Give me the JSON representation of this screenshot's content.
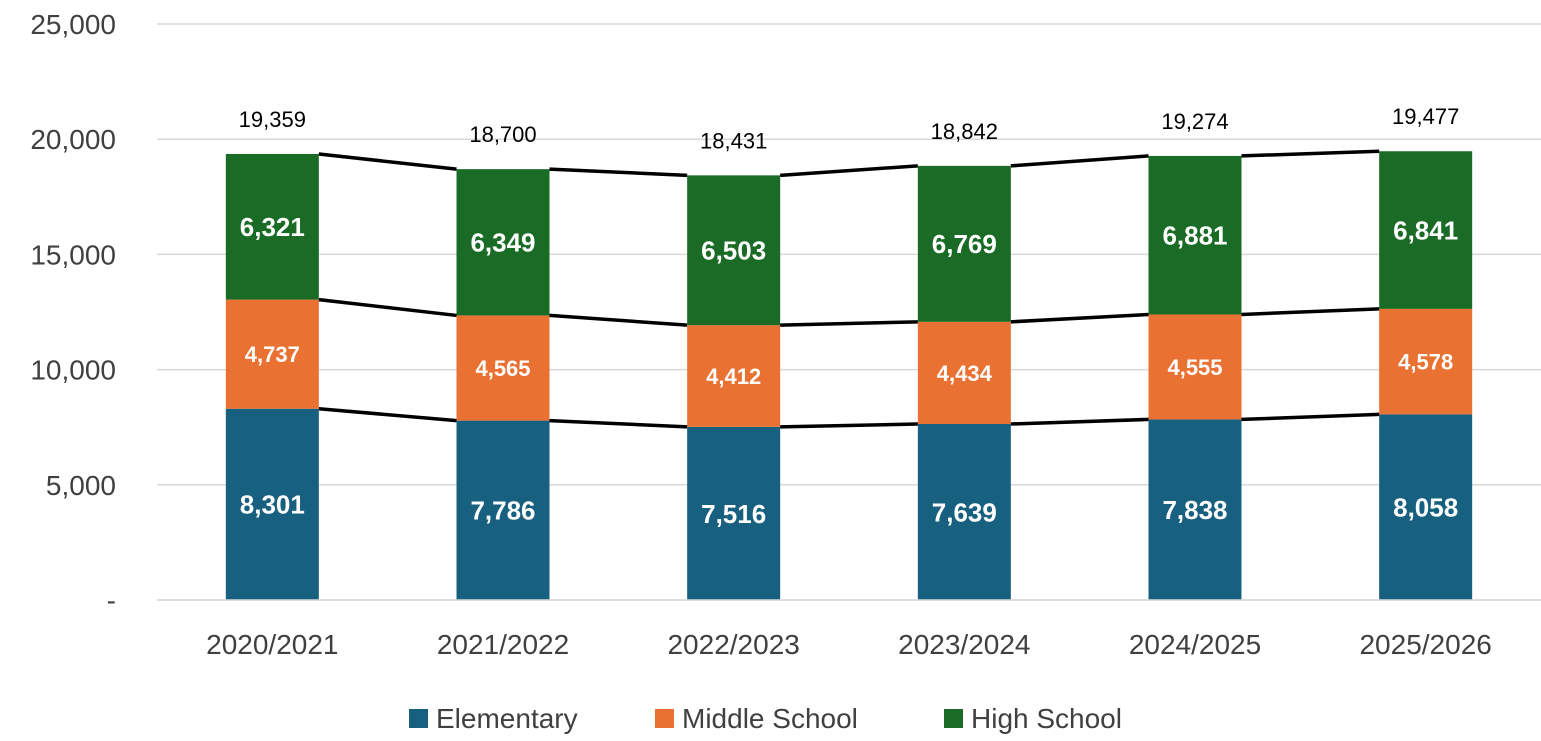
{
  "chart_data": {
    "type": "bar",
    "stacked": true,
    "categories": [
      "2020/2021",
      "2021/2022",
      "2022/2023",
      "2023/2024",
      "2024/2025",
      "2025/2026"
    ],
    "series": [
      {
        "name": "Elementary",
        "color": "#18607f",
        "values": [
          8301,
          7786,
          7516,
          7639,
          7838,
          8058
        ]
      },
      {
        "name": "Middle School",
        "color": "#e97132",
        "values": [
          4737,
          4565,
          4412,
          4434,
          4555,
          4578
        ]
      },
      {
        "name": "High School",
        "color": "#1a6b25",
        "values": [
          6321,
          6349,
          6503,
          6769,
          6881,
          6841
        ]
      }
    ],
    "totals": [
      19359,
      18700,
      18431,
      18842,
      19274,
      19477
    ],
    "series_labels": [
      [
        "8,301",
        "7,786",
        "7,516",
        "7,639",
        "7,838",
        "8,058"
      ],
      [
        "4,737",
        "4,565",
        "4,412",
        "4,434",
        "4,555",
        "4,578"
      ],
      [
        "6,321",
        "6,349",
        "6,503",
        "6,769",
        "6,881",
        "6,841"
      ]
    ],
    "total_labels": [
      "19,359",
      "18,700",
      "18,431",
      "18,842",
      "19,274",
      "19,477"
    ],
    "yticks": [
      0,
      5000,
      10000,
      15000,
      20000,
      25000
    ],
    "ytick_labels": [
      "-",
      "5,000",
      "10,000",
      "15,000",
      "20,000",
      "25,000"
    ],
    "ylim": [
      0,
      25000
    ],
    "grid": true,
    "series_lines": true,
    "legend_position": "bottom",
    "title": "",
    "xlabel": "",
    "ylabel": ""
  }
}
